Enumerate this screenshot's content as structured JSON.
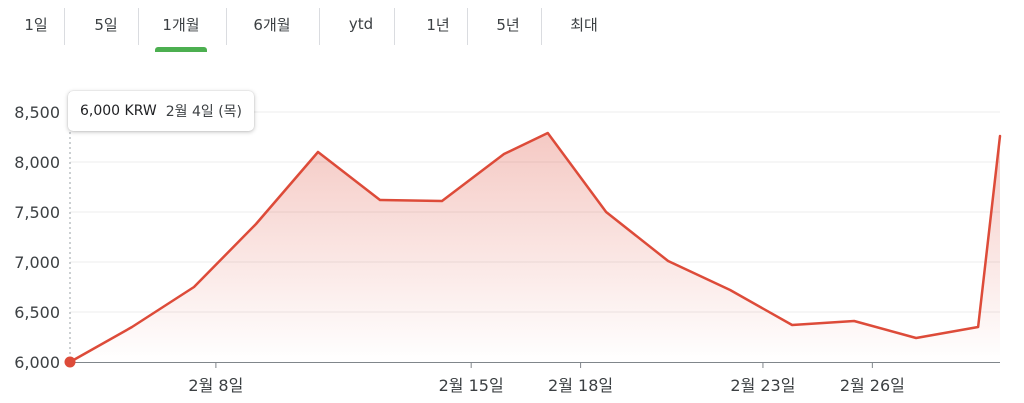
{
  "tabs": [
    {
      "label": "1일",
      "active": false
    },
    {
      "label": "5일",
      "active": false
    },
    {
      "label": "1개월",
      "active": true
    },
    {
      "label": "6개월",
      "active": false
    },
    {
      "label": "ytd",
      "active": false
    },
    {
      "label": "1년",
      "active": false
    },
    {
      "label": "5년",
      "active": false
    },
    {
      "label": "최대",
      "active": false
    }
  ],
  "tooltip": {
    "price": "6,000 KRW",
    "date": "2월 4일 (목)"
  },
  "colors": {
    "line": "#dd4b39",
    "tab_underline": "#4caf50",
    "grid": "#ececec"
  },
  "chart_data": {
    "type": "line",
    "x_range": [
      0,
      25.5
    ],
    "ylim": [
      6000,
      8500
    ],
    "yticks": [
      "6,000",
      "6,500",
      "7,000",
      "7,500",
      "8,000",
      "8,500"
    ],
    "ytick_values": [
      6000,
      6500,
      7000,
      7500,
      8000,
      8500
    ],
    "xticks": [
      {
        "label": "2월 8일",
        "x": 4
      },
      {
        "label": "2월 15일",
        "x": 11
      },
      {
        "label": "2월 18일",
        "x": 14
      },
      {
        "label": "2월 23일",
        "x": 19
      },
      {
        "label": "2월 26일",
        "x": 22
      }
    ],
    "series": [
      {
        "x": [
          0,
          1.7,
          3.4,
          5.1,
          6.8,
          8.5,
          10.2,
          11.9,
          13.1,
          14.7,
          16.4,
          18.1,
          19.8,
          21.5,
          23.2,
          24.9,
          25.5
        ],
        "values": [
          6000,
          6350,
          6750,
          7380,
          8100,
          7620,
          7610,
          8080,
          8290,
          7500,
          7010,
          6720,
          6370,
          6410,
          6240,
          6350,
          8260
        ]
      }
    ],
    "highlight_index": 0,
    "area_fill": true,
    "grid": true
  }
}
